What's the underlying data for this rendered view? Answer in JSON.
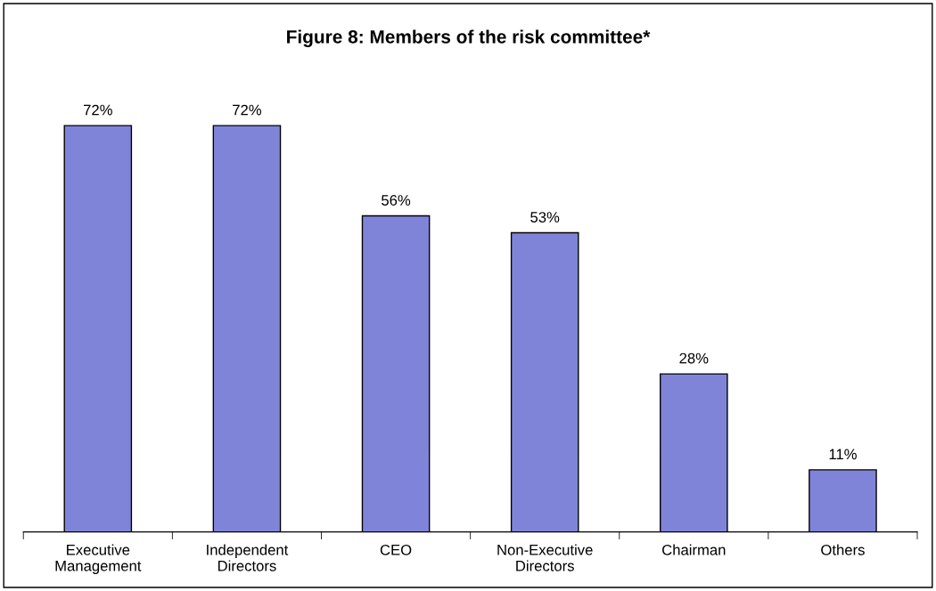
{
  "chart_data": {
    "type": "bar",
    "title": "Figure 8: Members of the risk committee*",
    "categories": [
      "Executive\nManagement",
      "Independent\nDirectors",
      "CEO",
      "Non-Executive\nDirectors",
      "Chairman",
      "Others"
    ],
    "values": [
      72,
      72,
      56,
      53,
      28,
      11
    ],
    "value_labels": [
      "72%",
      "72%",
      "56%",
      "53%",
      "28%",
      "11%"
    ],
    "color": "#8084d8",
    "grid": false,
    "legend": false
  }
}
